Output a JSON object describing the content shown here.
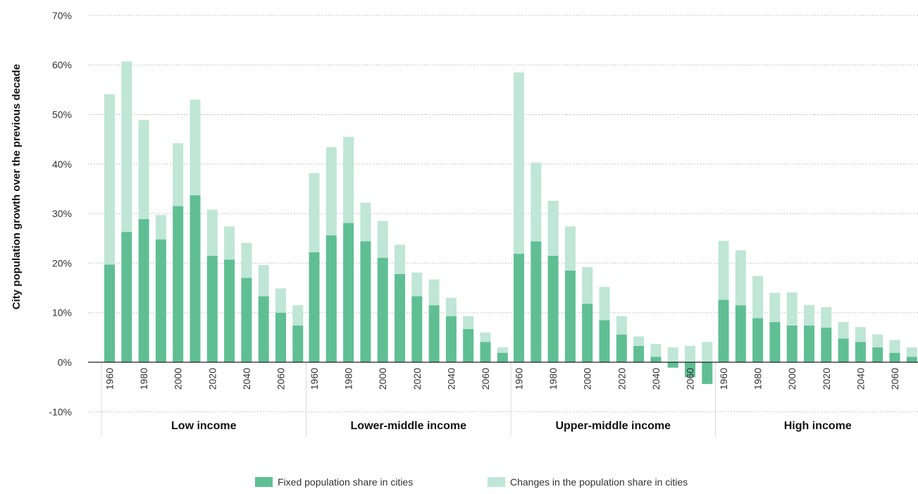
{
  "chart_data": {
    "type": "bar",
    "stacked": true,
    "ylabel": "City population growth over the previous decade",
    "xlabel": "",
    "ylim": [
      -10,
      70
    ],
    "yticks": [
      -10,
      0,
      10,
      20,
      30,
      40,
      50,
      60,
      70
    ],
    "ytick_labels": [
      "-10%",
      "0%",
      "10%",
      "20%",
      "30%",
      "40%",
      "50%",
      "60%",
      "70%"
    ],
    "grid": "horizontal dotted",
    "legend_position": "bottom",
    "colors": {
      "fixed": "#5fbf93",
      "changes": "#bfe6d6"
    },
    "x": [
      1960,
      1970,
      1980,
      1990,
      2000,
      2010,
      2020,
      2030,
      2040,
      2050,
      2060,
      2070
    ],
    "tick_labels": [
      "1960",
      "1980",
      "2000",
      "2020",
      "2040",
      "2060"
    ],
    "groups": [
      {
        "name": "Low income",
        "fixed": [
          19.7,
          26.3,
          28.9,
          24.8,
          31.5,
          33.7,
          21.5,
          20.7,
          17.0,
          13.3,
          10.0,
          7.4
        ],
        "changes": [
          34.4,
          34.4,
          20.0,
          4.9,
          12.7,
          19.3,
          9.3,
          6.7,
          7.1,
          6.3,
          4.9,
          4.1
        ]
      },
      {
        "name": "Lower-middle income",
        "fixed": [
          22.2,
          25.6,
          28.1,
          24.4,
          21.1,
          17.8,
          13.3,
          11.5,
          9.3,
          6.7,
          4.1,
          1.9
        ],
        "changes": [
          16.0,
          17.8,
          17.4,
          7.8,
          7.4,
          5.9,
          4.8,
          5.2,
          3.7,
          2.6,
          1.9,
          1.1
        ]
      },
      {
        "name": "Upper-middle income",
        "fixed": [
          21.9,
          24.4,
          21.5,
          18.5,
          11.8,
          8.5,
          5.6,
          3.3,
          1.1,
          -1.1,
          -3.0,
          -4.4
        ],
        "changes": [
          36.6,
          15.9,
          11.1,
          8.9,
          7.4,
          6.7,
          3.7,
          1.9,
          2.6,
          3.0,
          3.3,
          4.1
        ]
      },
      {
        "name": "High income",
        "fixed": [
          12.6,
          11.5,
          8.9,
          8.1,
          7.4,
          7.4,
          7.0,
          4.8,
          4.1,
          3.0,
          1.9,
          1.1
        ],
        "changes": [
          11.9,
          11.1,
          8.5,
          5.9,
          6.7,
          4.1,
          4.1,
          3.3,
          3.0,
          2.6,
          2.6,
          1.9
        ]
      }
    ],
    "series": [
      {
        "name": "Fixed population share in cities",
        "key": "fixed"
      },
      {
        "name": "Changes in the population share in cities",
        "key": "changes"
      }
    ]
  }
}
